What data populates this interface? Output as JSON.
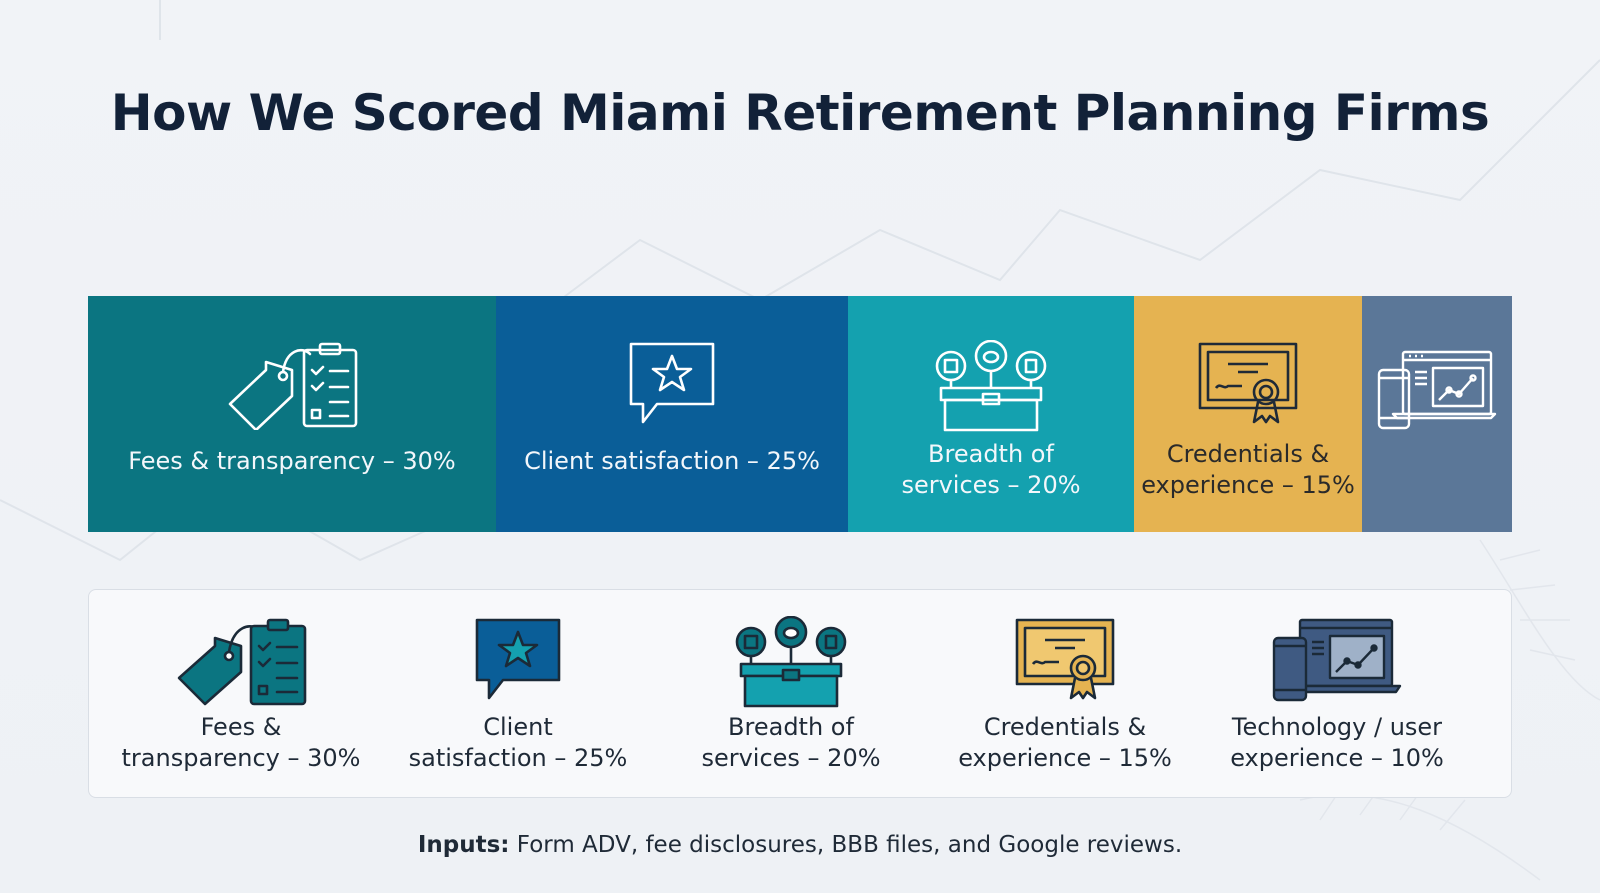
{
  "title": "How We Scored Miami Retirement Planning Firms",
  "banner": {
    "segments": [
      {
        "label": "Fees & transparency – 30%",
        "icon": "price-tag-checklist-icon",
        "color": "#0b7581"
      },
      {
        "label": "Client satisfaction – 25%",
        "icon": "star-speech-bubble-icon",
        "color": "#0a5e98"
      },
      {
        "label_line1": "Breadth of",
        "label_line2": "services – 20%",
        "icon": "services-toolbox-icon",
        "color": "#14a1af"
      },
      {
        "label_line1": "Credentials &",
        "label_line2": "experience – 15%",
        "icon": "certificate-icon",
        "color": "#e5b351"
      },
      {
        "icon": "devices-chart-icon",
        "color": "#5b7798"
      }
    ]
  },
  "criteria": [
    {
      "line1": "Fees &",
      "line2": "transparency – 30%",
      "icon": "price-tag-checklist-icon",
      "weight": 30
    },
    {
      "line1": "Client",
      "line2": "satisfaction – 25%",
      "icon": "star-speech-bubble-icon",
      "weight": 25
    },
    {
      "line1": "Breadth of",
      "line2": "services – 20%",
      "icon": "services-toolbox-icon",
      "weight": 20
    },
    {
      "line1": "Credentials &",
      "line2": "experience – 15%",
      "icon": "certificate-icon",
      "weight": 15
    },
    {
      "line1": "Technology / user",
      "line2": "experience – 10%",
      "icon": "devices-chart-icon",
      "weight": 10
    }
  ],
  "footnote": {
    "label": "Inputs:",
    "text": " Form ADV, fee disclosures, BBB files, and Google reviews."
  }
}
